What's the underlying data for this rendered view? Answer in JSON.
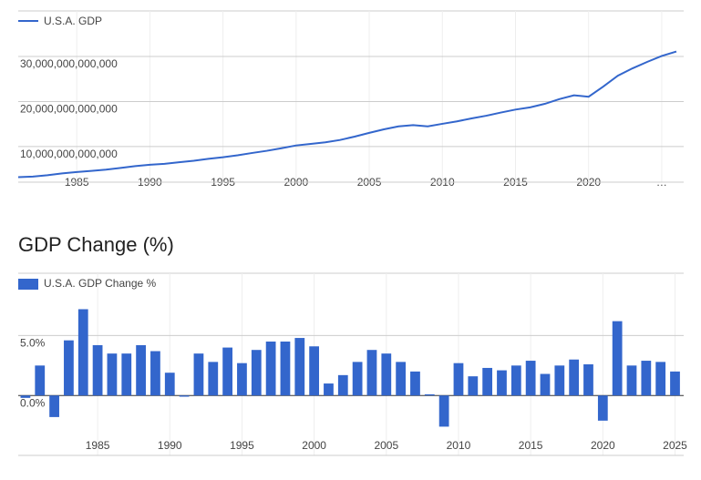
{
  "chart_data": [
    {
      "type": "line",
      "x": [
        1981,
        1982,
        1983,
        1984,
        1985,
        1986,
        1987,
        1988,
        1989,
        1990,
        1991,
        1992,
        1993,
        1994,
        1995,
        1996,
        1997,
        1998,
        1999,
        2000,
        2001,
        2002,
        2003,
        2004,
        2005,
        2006,
        2007,
        2008,
        2009,
        2010,
        2011,
        2012,
        2013,
        2014,
        2015,
        2016,
        2017,
        2018,
        2019,
        2020,
        2021,
        2022,
        2023,
        2024,
        2025,
        2026
      ],
      "series": [
        {
          "name": "U.S.A. GDP",
          "color": "#3366cc",
          "values": [
            3210000000000,
            3340000000000,
            3640000000000,
            4040000000000,
            4350000000000,
            4590000000000,
            4870000000000,
            5250000000000,
            5660000000000,
            5960000000000,
            6160000000000,
            6520000000000,
            6860000000000,
            7290000000000,
            7640000000000,
            8070000000000,
            8580000000000,
            9060000000000,
            9630000000000,
            10250000000000,
            10580000000000,
            10940000000000,
            11460000000000,
            12210000000000,
            13040000000000,
            13820000000000,
            14470000000000,
            14770000000000,
            14480000000000,
            15050000000000,
            15600000000000,
            16250000000000,
            16840000000000,
            17550000000000,
            18210000000000,
            18700000000000,
            19480000000000,
            20530000000000,
            21380000000000,
            21060000000000,
            23320000000000,
            25740000000000,
            27360000000000,
            28780000000000,
            30100000000000,
            31100000000000
          ]
        }
      ],
      "xlim": [
        1981,
        2026.5
      ],
      "xticks": [
        1985,
        1990,
        1995,
        2000,
        2005,
        2010,
        2015,
        2020,
        {
          "value": 2025,
          "label": "…"
        }
      ],
      "ylim": [
        2100000000000,
        40100000000000
      ],
      "yticks": [
        {
          "value": 10000000000000,
          "label": "10,000,000,000,000"
        },
        {
          "value": 20000000000000,
          "label": "20,000,000,000,000"
        },
        {
          "value": 30000000000000,
          "label": "30,000,000,000,000"
        }
      ],
      "grid": true
    },
    {
      "type": "bar",
      "title": "GDP Change (%)",
      "x": [
        1980,
        1981,
        1982,
        1983,
        1984,
        1985,
        1986,
        1987,
        1988,
        1989,
        1990,
        1991,
        1992,
        1993,
        1994,
        1995,
        1996,
        1997,
        1998,
        1999,
        2000,
        2001,
        2002,
        2003,
        2004,
        2005,
        2006,
        2007,
        2008,
        2009,
        2010,
        2011,
        2012,
        2013,
        2014,
        2015,
        2016,
        2017,
        2018,
        2019,
        2020,
        2021,
        2022,
        2023,
        2024,
        2025
      ],
      "series": [
        {
          "name": "U.S.A. GDP Change %",
          "color": "#3366cc",
          "values": [
            -0.2,
            2.5,
            -1.8,
            4.6,
            7.2,
            4.2,
            3.5,
            3.5,
            4.2,
            3.7,
            1.9,
            -0.1,
            3.5,
            2.8,
            4.0,
            2.7,
            3.8,
            4.5,
            4.5,
            4.8,
            4.1,
            1.0,
            1.7,
            2.8,
            3.8,
            3.5,
            2.8,
            2.0,
            0.1,
            -2.6,
            2.7,
            1.6,
            2.3,
            2.1,
            2.5,
            2.9,
            1.8,
            2.5,
            3.0,
            2.6,
            -2.1,
            6.2,
            2.5,
            2.9,
            2.8,
            2.0
          ]
        }
      ],
      "xlim": [
        1979.5,
        2025.6
      ],
      "xticks": [
        1985,
        1990,
        1995,
        2000,
        2005,
        2010,
        2015,
        2020,
        2025
      ],
      "ylim": [
        -5,
        10.2
      ],
      "yticks": [
        {
          "value": 0,
          "label": "0.0%"
        },
        {
          "value": 5,
          "label": "5.0%"
        }
      ],
      "grid": true
    }
  ]
}
